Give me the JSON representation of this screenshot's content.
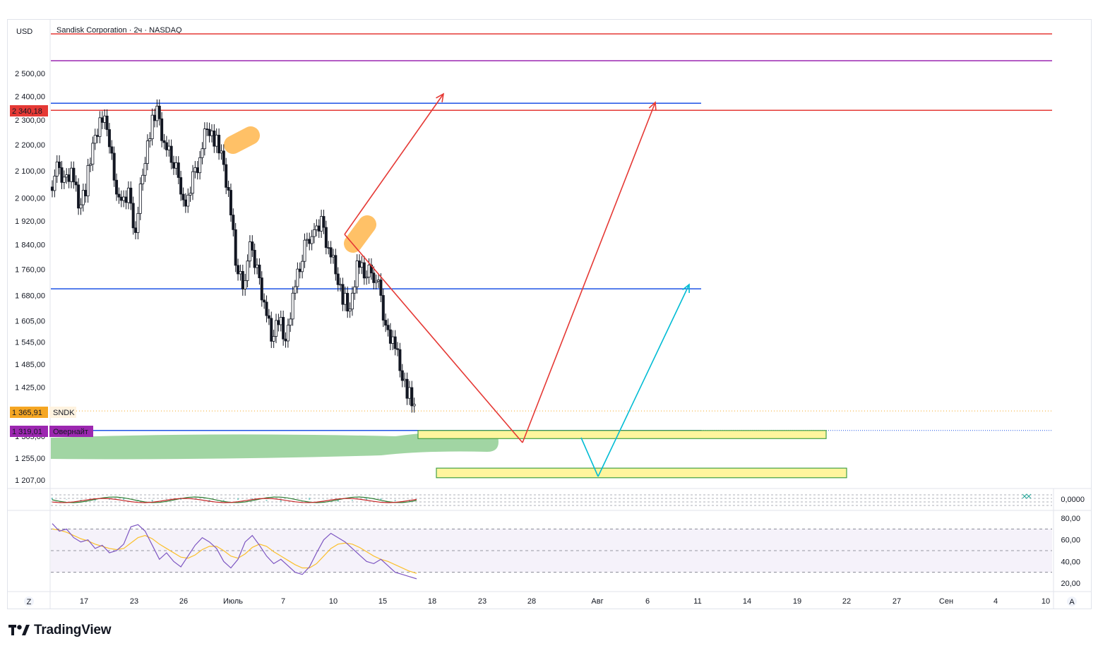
{
  "header": {
    "currency": "USD",
    "instrument": "Sandisk Corporation · 2ч · NASDAQ"
  },
  "badges": {
    "last_close": "2 340,18",
    "price": "1 365,91",
    "symbol": "SNDK",
    "overnight_price": "1 319,01",
    "overnight_label": "Овернайт"
  },
  "footer": {
    "left_button": "Z",
    "right_button": "A",
    "brand": "TradingView"
  },
  "colors": {
    "red_line": "#e53935",
    "purple_line": "#9c27b0",
    "blue_line": "#1e53e5",
    "cyan_arrow": "#00bcd4",
    "highlight_orange": "#ffb74d",
    "green_zone": "#81c784",
    "yellow_zone": "#fff59d",
    "yellow_zone_border": "#43a047",
    "rsi_line": "#7e57c2",
    "rsi_ma": "#fbc02d",
    "candle_up": "#ffffff",
    "candle_down": "#131722"
  },
  "chart_data": [
    {
      "type": "candlestick",
      "title": "Sandisk Corporation · 2ч · NASDAQ",
      "price_axis_ticks": [
        "2 500,00",
        "2 400,00",
        "2 300,00",
        "2 200,00",
        "2 100,00",
        "2 000,00",
        "1 920,00",
        "1 840,00",
        "1 760,00",
        "1 680,00",
        "1 605,00",
        "1 545,00",
        "1 485,00",
        "1 425,00",
        "1 305,00",
        "1 255,00",
        "1 207,00"
      ],
      "time_axis_ticks": [
        "17",
        "23",
        "26",
        "Июль",
        "7",
        "10",
        "15",
        "18",
        "23",
        "28",
        "Авг",
        "6",
        "11",
        "14",
        "19",
        "22",
        "27",
        "Сен",
        "4",
        "10"
      ],
      "close_path": [
        {
          "t": 0,
          "p": 2040
        },
        {
          "t": 1,
          "p": 2100
        },
        {
          "t": 2,
          "p": 2060
        },
        {
          "t": 3,
          "p": 2110
        },
        {
          "t": 4,
          "p": 1980
        },
        {
          "t": 5,
          "p": 2040
        },
        {
          "t": 6,
          "p": 2180
        },
        {
          "t": 7,
          "p": 2300
        },
        {
          "t": 8,
          "p": 2270
        },
        {
          "t": 9,
          "p": 2090
        },
        {
          "t": 10,
          "p": 1960
        },
        {
          "t": 11,
          "p": 2020
        },
        {
          "t": 12,
          "p": 1880
        },
        {
          "t": 13,
          "p": 2100
        },
        {
          "t": 14,
          "p": 2260
        },
        {
          "t": 15,
          "p": 2330
        },
        {
          "t": 16,
          "p": 2200
        },
        {
          "t": 17,
          "p": 2140
        },
        {
          "t": 18,
          "p": 2100
        },
        {
          "t": 19,
          "p": 1940
        },
        {
          "t": 20,
          "p": 2080
        },
        {
          "t": 21,
          "p": 2150
        },
        {
          "t": 22,
          "p": 2280
        },
        {
          "t": 23,
          "p": 2230
        },
        {
          "t": 24,
          "p": 2150
        },
        {
          "t": 25,
          "p": 2020
        },
        {
          "t": 26,
          "p": 1780
        },
        {
          "t": 27,
          "p": 1720
        },
        {
          "t": 28,
          "p": 1820
        },
        {
          "t": 29,
          "p": 1760
        },
        {
          "t": 30,
          "p": 1660
        },
        {
          "t": 31,
          "p": 1560
        },
        {
          "t": 32,
          "p": 1620
        },
        {
          "t": 33,
          "p": 1530
        },
        {
          "t": 34,
          "p": 1680
        },
        {
          "t": 35,
          "p": 1760
        },
        {
          "t": 36,
          "p": 1880
        },
        {
          "t": 37,
          "p": 1860
        },
        {
          "t": 38,
          "p": 1920
        },
        {
          "t": 39,
          "p": 1830
        },
        {
          "t": 40,
          "p": 1760
        },
        {
          "t": 41,
          "p": 1680
        },
        {
          "t": 42,
          "p": 1620
        },
        {
          "t": 43,
          "p": 1780
        },
        {
          "t": 44,
          "p": 1740
        },
        {
          "t": 45,
          "p": 1770
        },
        {
          "t": 46,
          "p": 1700
        },
        {
          "t": 47,
          "p": 1580
        },
        {
          "t": 48,
          "p": 1560
        },
        {
          "t": 49,
          "p": 1480
        },
        {
          "t": 50,
          "p": 1420
        },
        {
          "t": 51,
          "p": 1366
        }
      ],
      "horizontal_levels": [
        {
          "price": 2340.18,
          "color": "red"
        },
        {
          "price": 2370,
          "color": "blue"
        },
        {
          "price": 1700,
          "color": "blue"
        },
        {
          "price": 1319.01,
          "color": "blue",
          "style": "dotted"
        },
        {
          "price": 1365.91,
          "color": "orange",
          "style": "dotted"
        }
      ],
      "zones": [
        {
          "label": "yellow zone upper",
          "price_top": 1319,
          "price_bottom": 1300
        },
        {
          "label": "yellow zone lower",
          "price_top": 1233,
          "price_bottom": 1212
        }
      ],
      "annotations": [
        {
          "kind": "arrow",
          "color": "red",
          "from_price": 1850,
          "to_price": 2400
        },
        {
          "kind": "arrow",
          "color": "red",
          "from_price": 1700,
          "to_price": 1290
        },
        {
          "kind": "arrow",
          "color": "red",
          "from_price": 1290,
          "to_price": 2370
        },
        {
          "kind": "arrow",
          "color": "cyan",
          "from_price": 1295,
          "to_price": 1220
        },
        {
          "kind": "arrow",
          "color": "cyan",
          "from_price": 1220,
          "to_price": 1700
        }
      ]
    },
    {
      "type": "line",
      "name": "oscillator",
      "axis_ticks": [
        "0,0000"
      ]
    },
    {
      "type": "line",
      "name": "RSI",
      "axis_ticks": [
        "80,00",
        "60,00",
        "40,00",
        "20,00"
      ],
      "ylim": [
        20,
        80
      ],
      "bands": [
        70,
        50,
        30
      ],
      "values": [
        75,
        68,
        70,
        62,
        58,
        60,
        52,
        55,
        48,
        50,
        56,
        72,
        74,
        68,
        55,
        42,
        48,
        40,
        35,
        45,
        55,
        62,
        58,
        52,
        40,
        34,
        42,
        58,
        64,
        55,
        45,
        38,
        42,
        36,
        30,
        28,
        35,
        48,
        60,
        66,
        62,
        58,
        52,
        46,
        40,
        38,
        42,
        36,
        30,
        28,
        26,
        24
      ],
      "ma_values": [
        70,
        69,
        67,
        64,
        61,
        59,
        56,
        54,
        52,
        51,
        52,
        57,
        62,
        64,
        61,
        56,
        52,
        48,
        44,
        43,
        46,
        51,
        54,
        54,
        50,
        45,
        43,
        47,
        53,
        56,
        54,
        49,
        45,
        41,
        37,
        34,
        34,
        38,
        45,
        52,
        56,
        57,
        56,
        53,
        49,
        45,
        42,
        40,
        37,
        34,
        31,
        29
      ]
    }
  ]
}
